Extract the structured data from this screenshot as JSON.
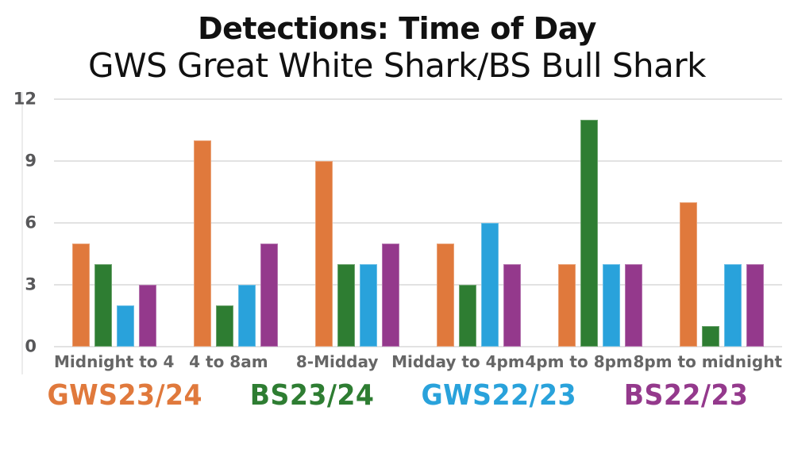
{
  "title": "Detections: Time of Day",
  "subtitle": "GWS Great White Shark/BS Bull Shark",
  "colors": {
    "background": "#ffffff",
    "grid": "#e2e2e2",
    "axis_line": "#ececec",
    "y_tick_text": "#58585a",
    "x_tick_text": "#666666",
    "title_text": "#111111"
  },
  "chart_data": {
    "type": "bar",
    "categories": [
      "Midnight to 4",
      "4 to 8am",
      "8-Midday",
      "Midday to 4pm",
      "4pm to 8pm",
      "8pm to midnight"
    ],
    "series": [
      {
        "name": "GWS23/24",
        "color": "#e0793c",
        "values": [
          5,
          10,
          9,
          5,
          4,
          7
        ]
      },
      {
        "name": "BS23/24",
        "color": "#2e7d32",
        "values": [
          4,
          2,
          4,
          3,
          11,
          1
        ]
      },
      {
        "name": "GWS22/23",
        "color": "#29a2db",
        "values": [
          2,
          3,
          4,
          6,
          4,
          4
        ]
      },
      {
        "name": "BS22/23",
        "color": "#94398c",
        "values": [
          3,
          5,
          5,
          4,
          4,
          4
        ]
      }
    ],
    "title": "Detections: Time of Day",
    "subtitle": "GWS Great White Shark/BS Bull Shark",
    "xlabel": "",
    "ylabel": "",
    "yticks": [
      0,
      3,
      6,
      9,
      12
    ],
    "ylim": [
      0,
      12
    ],
    "grid": true,
    "legend_position": "bottom"
  }
}
